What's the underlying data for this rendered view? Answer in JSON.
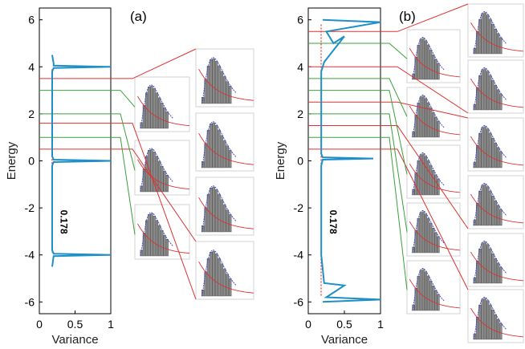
{
  "figure": {
    "panels": [
      {
        "label": "(a)",
        "value_label": "0.178",
        "ylabel": "Energy",
        "xlabel": "Variance",
        "red_levels": [
          3.5,
          1.6,
          0.5
        ],
        "green_levels": [
          3.0,
          2.0,
          1.0
        ],
        "inset_count": 7
      },
      {
        "label": "(b)",
        "value_label": "0.178",
        "ylabel": "Energy",
        "xlabel": "Variance",
        "red_levels": [
          5.5,
          4.0,
          2.5,
          1.5,
          0.5
        ],
        "green_levels": [
          5.0,
          3.5,
          3.0,
          2.0,
          1.0
        ],
        "inset_count": 11
      }
    ]
  },
  "chart_data": [
    {
      "type": "line",
      "title": "(a)",
      "xlabel": "Variance",
      "ylabel": "Energy",
      "xlim": [
        0,
        1
      ],
      "ylim": [
        -6.5,
        6.5
      ],
      "xticks": [
        "0",
        "0.5",
        "1"
      ],
      "yticks": [
        "-6",
        "-4",
        "-2",
        "0",
        "2",
        "4",
        "6"
      ],
      "annotations": [
        "0.178"
      ],
      "series": [
        {
          "color": "#1f8fc7",
          "x": [
            0.18,
            0.2,
            0.2,
            1.0,
            0.2,
            0.18,
            0.18,
            0.2,
            1.0,
            0.2,
            0.18,
            0.18,
            0.2,
            1.0,
            0.2,
            0.18
          ],
          "y": [
            4.5,
            4.15,
            4.05,
            4.0,
            3.95,
            3.8,
            0.2,
            0.05,
            0.0,
            -0.05,
            -0.2,
            -3.8,
            -3.95,
            -4.0,
            -4.05,
            -4.5
          ]
        }
      ]
    },
    {
      "type": "line",
      "title": "(b)",
      "xlabel": "Variance",
      "ylabel": "Energy",
      "xlim": [
        0,
        1
      ],
      "ylim": [
        -6.5,
        6.5
      ],
      "xticks": [
        "0",
        "0.5",
        "1"
      ],
      "yticks": [
        "-6",
        "-4",
        "-2",
        "0",
        "2",
        "4",
        "6"
      ],
      "annotations": [
        "0.178"
      ],
      "series": [
        {
          "color": "#1f8fc7",
          "x": [
            0.2,
            1.0,
            0.25,
            0.35,
            0.5,
            0.22,
            0.18,
            0.18,
            0.2,
            0.9,
            0.2,
            0.18,
            0.18,
            0.22,
            0.5,
            0.35,
            0.25,
            1.0,
            0.2
          ],
          "y": [
            6.0,
            5.9,
            5.5,
            5.0,
            5.3,
            4.2,
            3.8,
            0.3,
            0.15,
            0.1,
            0.05,
            -0.2,
            -4.0,
            -5.2,
            -5.3,
            -5.6,
            -5.8,
            -5.9,
            -6.0
          ]
        }
      ]
    }
  ]
}
